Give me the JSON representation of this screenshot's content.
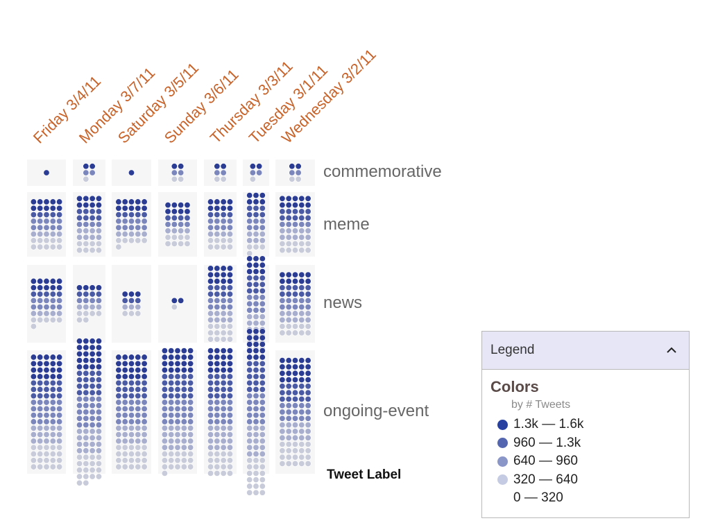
{
  "chart_data": {
    "type": "dot-matrix",
    "title": "",
    "xlabel": "",
    "ylabel": "Tweet Label",
    "columns": [
      "Friday 3/4/11",
      "Monday 3/7/11",
      "Saturday 3/5/11",
      "Sunday 3/6/11",
      "Thursday 3/3/11",
      "Tuesday 3/1/11",
      "Wednesday 3/2/11"
    ],
    "rows": [
      "commemorative",
      "meme",
      "news",
      "ongoing-event"
    ],
    "dot_counts": [
      [
        1,
        5,
        1,
        6,
        6,
        5,
        6
      ],
      [
        40,
        36,
        36,
        28,
        32,
        28,
        45
      ],
      [
        36,
        22,
        12,
        3,
        48,
        45,
        50
      ],
      [
        90,
        90,
        90,
        96,
        80,
        78,
        85
      ]
    ],
    "color_scale": {
      "title": "Colors",
      "subtitle": "by # Tweets",
      "bins": [
        {
          "label": "1.3k — 1.6k",
          "color": "#2840a0"
        },
        {
          "label": "960 — 1.3k",
          "color": "#5566b0"
        },
        {
          "label": "640 — 960",
          "color": "#8b96c8"
        },
        {
          "label": "320 — 640",
          "color": "#c5cbe2"
        },
        {
          "label": "0 — 320",
          "color": "#ffffff"
        }
      ]
    }
  },
  "legend": {
    "header": "Legend",
    "toggle_icon": "chevron-up-icon"
  }
}
